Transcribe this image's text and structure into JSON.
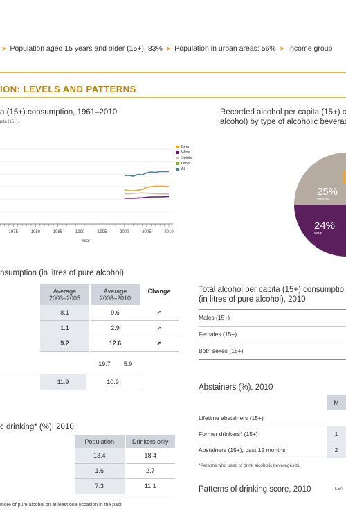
{
  "info_bar": {
    "item1": "Population aged 15 years and older (15+): 83%",
    "item2": "Population in urban areas: 56%",
    "item3": "Income group"
  },
  "section_title": "ION: LEVELS AND PATTERNS",
  "trend_chart": {
    "title": "a (15+) consumption, 1961–2010",
    "note": "pita (15+).",
    "xlabel": "Year",
    "legend": [
      {
        "label": "Beer",
        "color": "#e8a83a"
      },
      {
        "label": "Wine",
        "color": "#5b1f5e"
      },
      {
        "label": "Spirits",
        "color": "#c9c0b2"
      },
      {
        "label": "Other",
        "color": "#8fb23f"
      },
      {
        "label": "All",
        "color": "#4b7f92"
      }
    ]
  },
  "chart_data": {
    "type": "line",
    "x_ticks": [
      "1975",
      "1980",
      "1985",
      "1990",
      "1995",
      "2000",
      "2005",
      "2010"
    ],
    "x_range": [
      1972,
      2010
    ],
    "series": [
      {
        "name": "All",
        "color": "#4b7f92",
        "x": [
          2000,
          2001,
          2002,
          2003,
          2004,
          2005,
          2006,
          2007,
          2008,
          2009,
          2010
        ],
        "y": [
          11.6,
          11.7,
          11.5,
          11.9,
          11.8,
          12.3,
          12.5,
          12.4,
          12.6,
          12.6,
          12.6
        ]
      },
      {
        "name": "Beer",
        "color": "#e8a83a",
        "x": [
          2000,
          2001,
          2002,
          2003,
          2004,
          2005,
          2006,
          2007,
          2008,
          2009,
          2010
        ],
        "y": [
          8.2,
          8.0,
          8.0,
          8.1,
          8.3,
          8.8,
          9.0,
          9.1,
          9.1,
          9.1,
          9.0
        ]
      },
      {
        "name": "Spirits",
        "color": "#c9c0b2",
        "x": [
          2000,
          2002,
          2004,
          2006,
          2008,
          2010
        ],
        "y": [
          7.2,
          7.3,
          7.5,
          7.3,
          7.2,
          7.2
        ]
      },
      {
        "name": "Wine",
        "color": "#5b1f5e",
        "x": [
          2000,
          2002,
          2004,
          2006,
          2008,
          2010
        ],
        "y": [
          6.2,
          6.2,
          6.3,
          6.5,
          6.5,
          6.6
        ]
      }
    ]
  },
  "pie_chart": {
    "title_line1": "Recorded alcohol per capita (15+) c",
    "title_line2": "alcohol) by type of alcoholic beverag",
    "slices": [
      {
        "label": "SPIRITS",
        "value": 25,
        "text": "25%",
        "color": "#b5aba1"
      },
      {
        "label": "WINE",
        "value": 24,
        "text": "24%",
        "color": "#5b1f5e"
      }
    ]
  },
  "consumption_table": {
    "title": "nsumption (in litres of pure alcohol)",
    "headers": [
      "Average\n2003–2005",
      "Average\n2008–2010",
      "Change"
    ],
    "rows": [
      {
        "a": "8.1",
        "b": "9.6",
        "change": "up"
      },
      {
        "a": "1.1",
        "b": "2.9",
        "change": "up"
      },
      {
        "a": "9.2",
        "b": "12.6",
        "change": "up",
        "bold": true
      }
    ],
    "row4": [
      "19.7",
      "5.9"
    ],
    "row5": [
      "11.9",
      "10.9"
    ]
  },
  "heavy_drinking": {
    "title": "c drinking* (%), 2010",
    "headers": [
      "Population",
      "Drinkers only"
    ],
    "rows": [
      [
        "13.4",
        "18.4"
      ],
      [
        "1.6",
        "2.7"
      ],
      [
        "7.3",
        "11.1"
      ]
    ],
    "footnote": "more of pure alcohol on at least one occasion in the past"
  },
  "total_alcohol": {
    "title_line1": "Total alcohol per capita (15+) consumptio",
    "title_line2": "(in litres of pure alcohol), 2010",
    "rows": [
      "Males (15+)",
      "Females (15+)",
      "Both sexes (15+)"
    ]
  },
  "abstainers": {
    "title": "Abstainers (%), 2010",
    "header_partial": "M",
    "rows": [
      {
        "label": "Lifetime abstainers (15+)",
        "val": ""
      },
      {
        "label": "Former drinkers* (15+)",
        "val": "1"
      },
      {
        "label": "Abstainers (15+), past 12 months",
        "val": "2"
      }
    ],
    "footnote": "*Persons who used to drink alcoholic beverages bu"
  },
  "patterns": {
    "title": "Patterns of drinking score, 2010",
    "label": "LEA"
  }
}
